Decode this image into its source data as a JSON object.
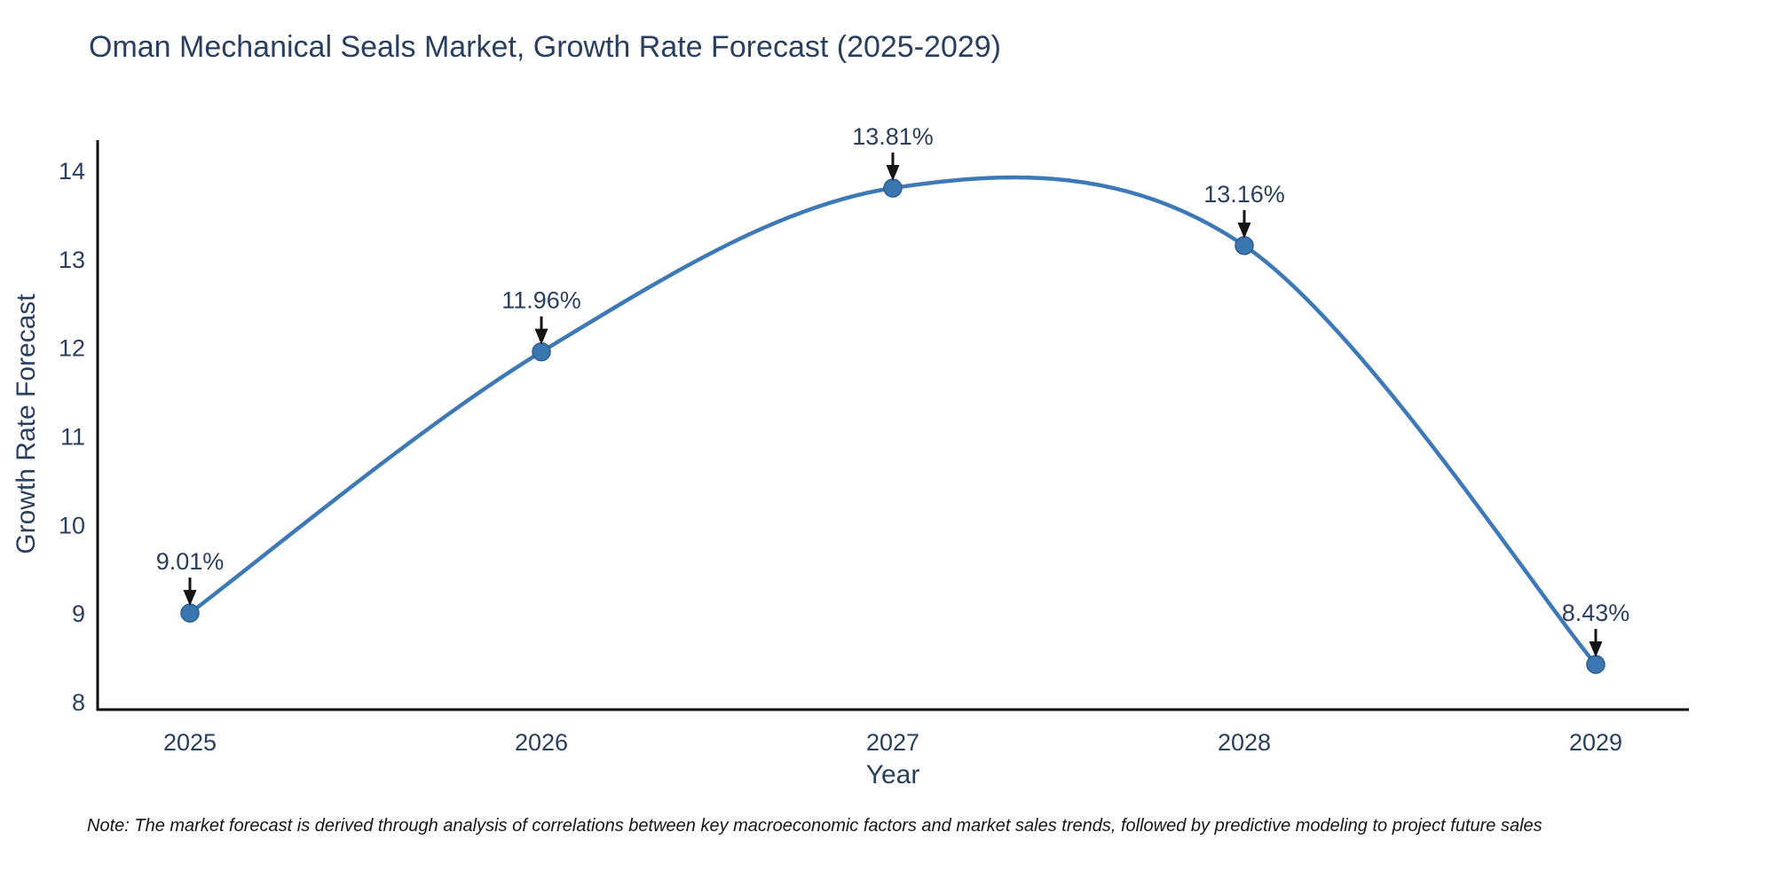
{
  "note": "Note: The market forecast is derived through analysis of correlations between key macroeconomic factors and market sales trends, followed by predictive modeling to project future sales",
  "chart_data": {
    "type": "line",
    "title": "Oman Mechanical Seals Market, Growth Rate Forecast (2025-2029)",
    "xlabel": "Year",
    "ylabel": "Growth Rate Forecast",
    "categories": [
      "2025",
      "2026",
      "2027",
      "2028",
      "2029"
    ],
    "series": [
      {
        "name": "Growth Rate Forecast",
        "values": [
          9.01,
          11.96,
          13.81,
          13.16,
          8.43
        ],
        "point_labels": [
          "9.01%",
          "11.96%",
          "13.81%",
          "13.16%",
          "8.43%"
        ]
      }
    ],
    "y_ticks": [
      8,
      9,
      10,
      11,
      12,
      13,
      14
    ],
    "ylim": [
      7.92,
      14.42
    ],
    "line_shape": "spline",
    "grid": false,
    "legend": "none",
    "annotations_style": "label-with-down-arrow",
    "colors": {
      "line": "#3c79b6",
      "marker": "#3a76b0",
      "marker_edge": "#2d5f91",
      "text": "#2a3f5f",
      "arrow": "#141414",
      "axis": "#0d0d0d",
      "background": "#ffffff"
    }
  }
}
